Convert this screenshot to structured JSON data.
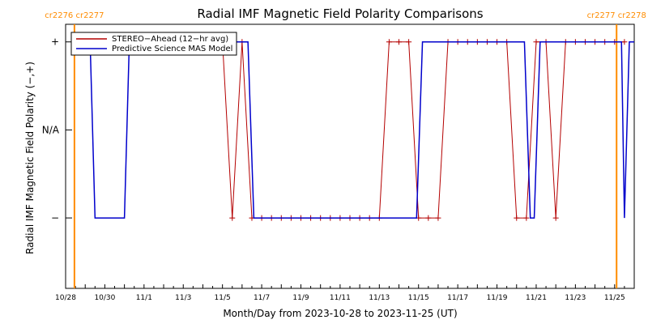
{
  "chart_data": {
    "type": "line",
    "title": "Radial IMF Magnetic Field Polarity Comparisons",
    "xlabel": "Month/Day from 2023-10-28 to 2023-11-25 (UT)",
    "ylabel": "Radial IMF Magnetic Field Polarity (−,+)",
    "xlim": [
      0,
      29
    ],
    "ylim": [
      -1.8,
      1.2
    ],
    "x_ticks": [
      {
        "x": 0,
        "label": "10/28"
      },
      {
        "x": 2,
        "label": "10/30"
      },
      {
        "x": 4,
        "label": "11/1"
      },
      {
        "x": 6,
        "label": "11/3"
      },
      {
        "x": 8,
        "label": "11/5"
      },
      {
        "x": 10,
        "label": "11/7"
      },
      {
        "x": 12,
        "label": "11/9"
      },
      {
        "x": 14,
        "label": "11/11"
      },
      {
        "x": 16,
        "label": "11/13"
      },
      {
        "x": 18,
        "label": "11/15"
      },
      {
        "x": 20,
        "label": "11/17"
      },
      {
        "x": 22,
        "label": "11/19"
      },
      {
        "x": 24,
        "label": "11/21"
      },
      {
        "x": 26,
        "label": "11/23"
      },
      {
        "x": 28,
        "label": "11/25"
      }
    ],
    "y_ticks": [
      {
        "y": 1,
        "label": "+"
      },
      {
        "y": 0,
        "label": "N/A"
      },
      {
        "y": -1,
        "label": "−"
      }
    ],
    "carrington_markers": [
      {
        "x": 0.45,
        "label": "cr2276 cr2277"
      },
      {
        "x": 28.1,
        "label": "cr2277 cr2278"
      }
    ],
    "legend": {
      "position": "top-left"
    },
    "colors": {
      "stereo": "#b40000",
      "model": "#0000cc",
      "carrington": "#ff8c00"
    },
    "series": [
      {
        "name": "STEREO−Ahead (12−hr avg)",
        "x": [
          0.5,
          1.0,
          1.5,
          2.0,
          2.5,
          3.0,
          3.5,
          4.0,
          4.5,
          5.0,
          5.5,
          6.0,
          6.5,
          7.0,
          7.5,
          8.0,
          8.5,
          9.0,
          9.5,
          10.0,
          10.5,
          11.0,
          11.5,
          12.0,
          12.5,
          13.0,
          13.5,
          14.0,
          14.5,
          15.0,
          15.5,
          16.0,
          16.5,
          17.0,
          17.5,
          18.0,
          18.5,
          19.0,
          19.5,
          20.0,
          20.5,
          21.0,
          21.5,
          22.0,
          22.5,
          23.0,
          23.5,
          24.0,
          24.5,
          25.0,
          25.5,
          26.0,
          26.5,
          27.0,
          27.5,
          28.0,
          28.5
        ],
        "values": [
          1,
          1,
          1,
          1,
          1,
          1,
          1,
          1,
          1,
          1,
          1,
          1,
          1,
          1,
          1,
          1,
          -1,
          1,
          -1,
          -1,
          -1,
          -1,
          -1,
          -1,
          -1,
          -1,
          -1,
          -1,
          -1,
          -1,
          -1,
          -1,
          1,
          1,
          1,
          -1,
          -1,
          -1,
          1,
          1,
          1,
          1,
          1,
          1,
          1,
          -1,
          -1,
          1,
          1,
          -1,
          1,
          1,
          1,
          1,
          1,
          1,
          1
        ]
      },
      {
        "name": "Predictive Science MAS Model",
        "x": [
          0.4,
          1.25,
          1.5,
          3.0,
          3.25,
          9.3,
          9.6,
          17.9,
          18.2,
          23.4,
          23.7,
          23.9,
          24.2,
          28.35,
          28.5,
          28.75,
          29.0
        ],
        "values": [
          1,
          1,
          -1,
          -1,
          1,
          1,
          -1,
          -1,
          1,
          1,
          -1,
          -1,
          1,
          1,
          -1,
          1,
          1
        ]
      }
    ]
  }
}
